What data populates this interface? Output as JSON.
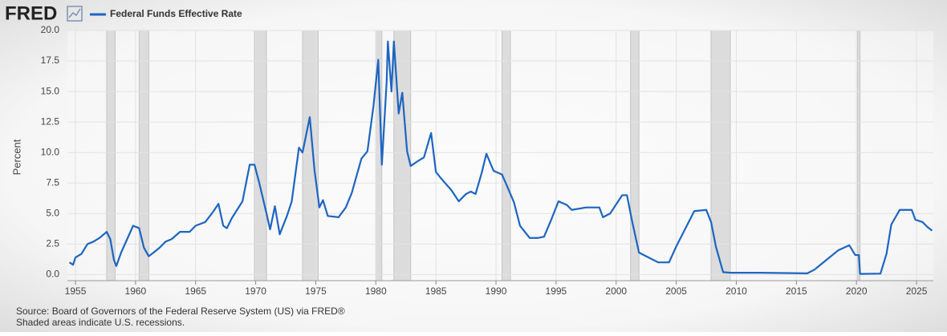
{
  "chart_data": {
    "type": "line",
    "brand": "FRED",
    "ylabel": "Percent",
    "source": "Source: Board of Governors of the Federal Reserve System (US) via FRED®",
    "note": "Shaded areas indicate U.S. recessions.",
    "xlim": [
      1954.33,
      2026.4
    ],
    "ylim": [
      -0.5,
      20
    ],
    "xticks": [
      1955,
      1960,
      1965,
      1970,
      1975,
      1980,
      1985,
      1990,
      1995,
      2000,
      2005,
      2010,
      2015,
      2020,
      2025
    ],
    "yticks": [
      {
        "value": 0,
        "label": "0.0"
      },
      2.5,
      {
        "value": 5,
        "label": "5.0"
      },
      7.5,
      {
        "value": 10,
        "label": "10.0"
      },
      12.5,
      {
        "value": 15,
        "label": "15.0"
      },
      17.5,
      {
        "value": 20,
        "label": "20.0"
      }
    ],
    "grid": true,
    "recessions": [
      [
        1957.6,
        1958.3
      ],
      [
        1960.3,
        1961.1
      ],
      [
        1969.9,
        1970.9
      ],
      [
        1973.9,
        1975.2
      ],
      [
        1980.0,
        1980.5
      ],
      [
        1981.5,
        1982.9
      ],
      [
        1990.5,
        1991.2
      ],
      [
        2001.2,
        2001.9
      ],
      [
        2007.9,
        2009.5
      ],
      [
        2020.1,
        2020.3
      ]
    ],
    "recession_color": "#dcdcdc",
    "x": [
      1954.5,
      1954.8,
      1955.0,
      1955.5,
      1956.0,
      1956.5,
      1957.0,
      1957.6,
      1957.9,
      1958.2,
      1958.4,
      1958.8,
      1959.3,
      1959.8,
      1960.3,
      1960.7,
      1961.1,
      1961.5,
      1962.0,
      1962.5,
      1963.0,
      1963.7,
      1964.5,
      1965.0,
      1965.8,
      1966.5,
      1966.9,
      1967.3,
      1967.6,
      1968.0,
      1968.9,
      1969.5,
      1969.9,
      1970.3,
      1970.9,
      1971.2,
      1971.6,
      1972.0,
      1972.6,
      1973.0,
      1973.6,
      1973.9,
      1974.5,
      1974.9,
      1975.3,
      1975.6,
      1976.0,
      1976.9,
      1977.5,
      1978.0,
      1978.8,
      1979.3,
      1979.8,
      1980.2,
      1980.5,
      1980.9,
      1981.0,
      1981.3,
      1981.5,
      1981.9,
      1982.2,
      1982.6,
      1982.9,
      1983.5,
      1984.0,
      1984.6,
      1985.0,
      1985.5,
      1986.3,
      1986.9,
      1987.5,
      1987.9,
      1988.3,
      1988.8,
      1989.2,
      1989.8,
      1990.5,
      1990.9,
      1991.5,
      1992.0,
      1992.8,
      1993.5,
      1994.0,
      1994.6,
      1995.2,
      1995.9,
      1996.3,
      1997.5,
      1998.6,
      1998.9,
      1999.5,
      2000.5,
      2000.9,
      2001.3,
      2001.9,
      2002.9,
      2003.5,
      2004.4,
      2005.0,
      2006.5,
      2007.5,
      2007.9,
      2008.3,
      2008.9,
      2009.5,
      2012.0,
      2015.9,
      2016.5,
      2017.5,
      2018.5,
      2019.4,
      2019.9,
      2020.2,
      2020.3,
      2022.0,
      2022.5,
      2022.9,
      2023.6,
      2024.6,
      2024.9,
      2025.5,
      2025.9,
      2026.3
    ],
    "series": [
      {
        "name": "Federal Funds Effective Rate",
        "color": "#1d65c1",
        "values": [
          1.0,
          0.8,
          1.4,
          1.7,
          2.5,
          2.7,
          3.0,
          3.5,
          2.9,
          1.2,
          0.7,
          1.8,
          2.9,
          4.0,
          3.8,
          2.2,
          1.5,
          1.8,
          2.2,
          2.7,
          2.9,
          3.5,
          3.5,
          4.0,
          4.3,
          5.2,
          5.8,
          4.0,
          3.8,
          4.6,
          6.0,
          9.0,
          9.0,
          7.5,
          5.0,
          3.7,
          5.6,
          3.3,
          4.8,
          6.0,
          10.4,
          10.0,
          12.9,
          8.5,
          5.5,
          6.1,
          4.8,
          4.7,
          5.5,
          6.7,
          9.5,
          10.1,
          13.8,
          17.6,
          9.0,
          15.8,
          19.1,
          15.0,
          19.1,
          13.2,
          14.9,
          10.1,
          8.9,
          9.3,
          9.6,
          11.6,
          8.4,
          7.8,
          6.9,
          6.0,
          6.6,
          6.8,
          6.6,
          8.3,
          9.9,
          8.5,
          8.2,
          7.3,
          5.9,
          4.0,
          3.0,
          3.0,
          3.1,
          4.5,
          6.0,
          5.7,
          5.3,
          5.5,
          5.5,
          4.7,
          5.0,
          6.5,
          6.5,
          4.5,
          1.8,
          1.3,
          1.0,
          1.0,
          2.3,
          5.2,
          5.3,
          4.3,
          2.3,
          0.2,
          0.15,
          0.15,
          0.1,
          0.4,
          1.2,
          2.0,
          2.4,
          1.6,
          1.6,
          0.05,
          0.08,
          1.7,
          4.1,
          5.3,
          5.3,
          4.5,
          4.3,
          3.9,
          3.6
        ]
      }
    ]
  }
}
